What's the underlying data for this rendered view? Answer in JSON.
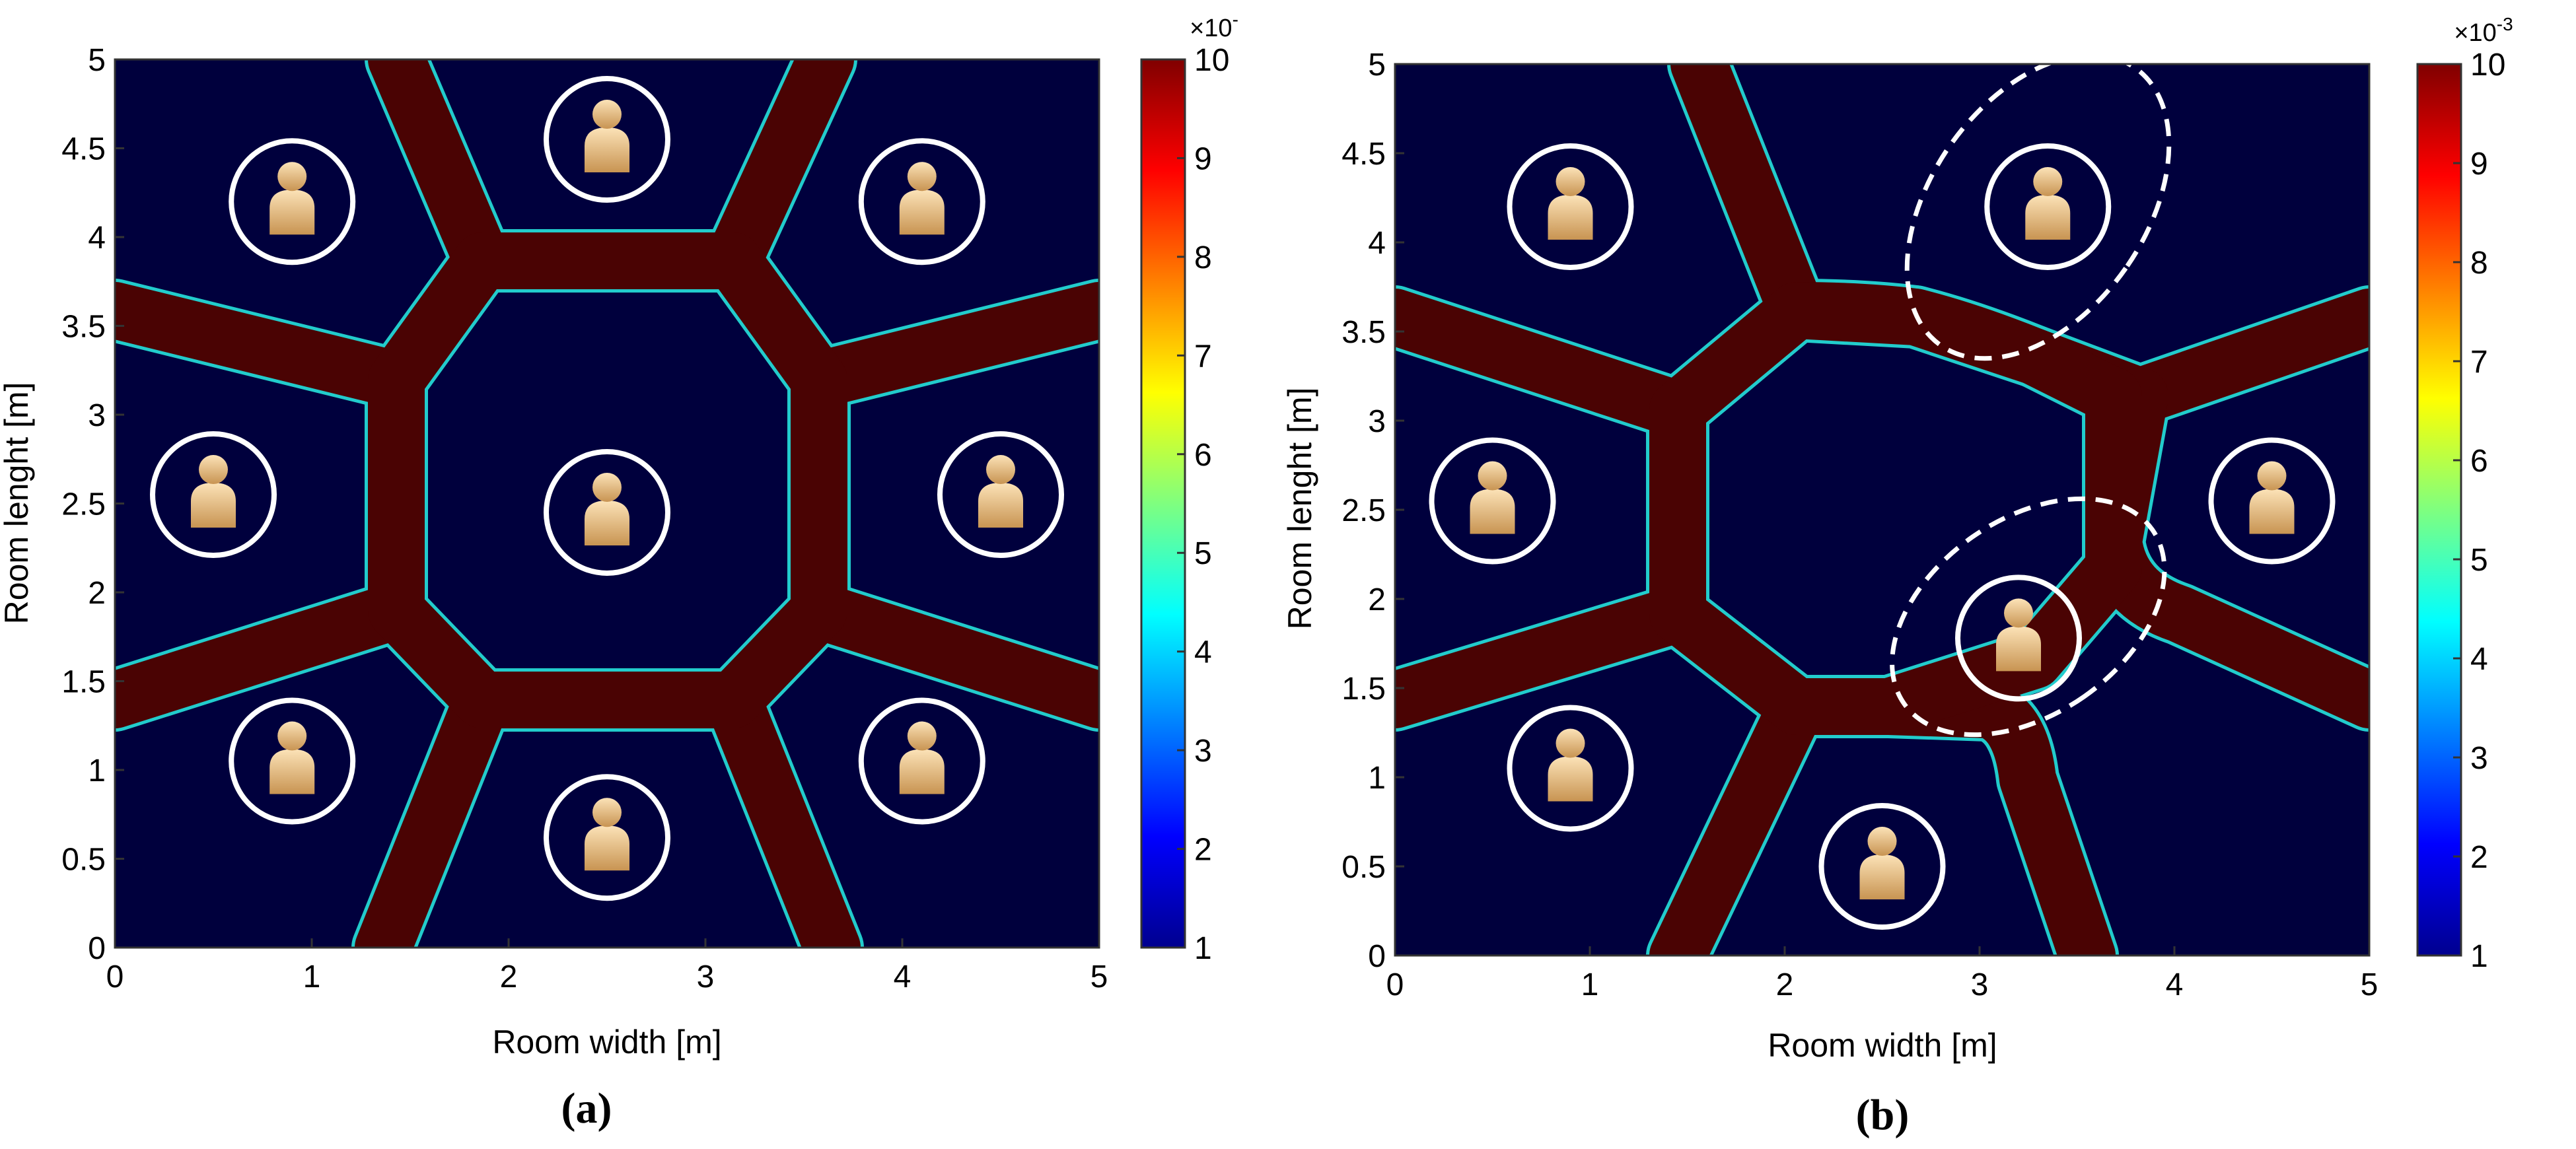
{
  "chart_data": [
    {
      "type": "heatmap",
      "panel_label": "(a)",
      "xlabel": "Room width [m]",
      "ylabel": "Room lenght [m]",
      "xlim": [
        0,
        5
      ],
      "ylim": [
        0,
        5
      ],
      "x_ticks": [
        "0",
        "1",
        "2",
        "3",
        "4",
        "5"
      ],
      "y_ticks": [
        "0",
        "0.5",
        "1",
        "1.5",
        "2",
        "2.5",
        "3",
        "3.5",
        "4",
        "4.5",
        "5"
      ],
      "colorbar": {
        "range": [
          1,
          10
        ],
        "ticks": [
          "1",
          "2",
          "3",
          "4",
          "5",
          "6",
          "7",
          "8",
          "9",
          "10"
        ],
        "multiplier_base": "×10",
        "multiplier_exp": "-"
      },
      "users": [
        {
          "x": 0.9,
          "y": 4.2
        },
        {
          "x": 2.5,
          "y": 4.55
        },
        {
          "x": 4.1,
          "y": 4.2
        },
        {
          "x": 0.5,
          "y": 2.55
        },
        {
          "x": 2.5,
          "y": 2.45
        },
        {
          "x": 4.5,
          "y": 2.55
        },
        {
          "x": 0.9,
          "y": 1.05
        },
        {
          "x": 2.5,
          "y": 0.62
        },
        {
          "x": 4.1,
          "y": 1.05
        }
      ],
      "highlights": []
    },
    {
      "type": "heatmap",
      "panel_label": "(b)",
      "xlabel": "Room width [m]",
      "ylabel": "Room lenght [m]",
      "xlim": [
        0,
        5
      ],
      "ylim": [
        0,
        5
      ],
      "x_ticks": [
        "0",
        "1",
        "2",
        "3",
        "4",
        "5"
      ],
      "y_ticks": [
        "0",
        "0.5",
        "1",
        "1.5",
        "2",
        "2.5",
        "3",
        "3.5",
        "4",
        "4.5",
        "5"
      ],
      "colorbar": {
        "range": [
          1,
          10
        ],
        "ticks": [
          "1",
          "2",
          "3",
          "4",
          "5",
          "6",
          "7",
          "8",
          "9",
          "10"
        ],
        "multiplier_base": "×10",
        "multiplier_exp": "-3"
      },
      "users": [
        {
          "x": 0.9,
          "y": 4.2
        },
        {
          "x": 3.35,
          "y": 4.2
        },
        {
          "x": 0.5,
          "y": 2.55
        },
        {
          "x": 4.5,
          "y": 2.55
        },
        {
          "x": 0.9,
          "y": 1.05
        },
        {
          "x": 3.2,
          "y": 1.78
        },
        {
          "x": 2.5,
          "y": 0.5
        }
      ],
      "highlights": [
        {
          "cx": 3.3,
          "cy": 4.2,
          "rx": 0.55,
          "ry": 0.95,
          "angle": 35
        },
        {
          "cx": 3.25,
          "cy": 1.9,
          "rx": 0.5,
          "ry": 0.85,
          "angle": 55
        }
      ]
    }
  ]
}
